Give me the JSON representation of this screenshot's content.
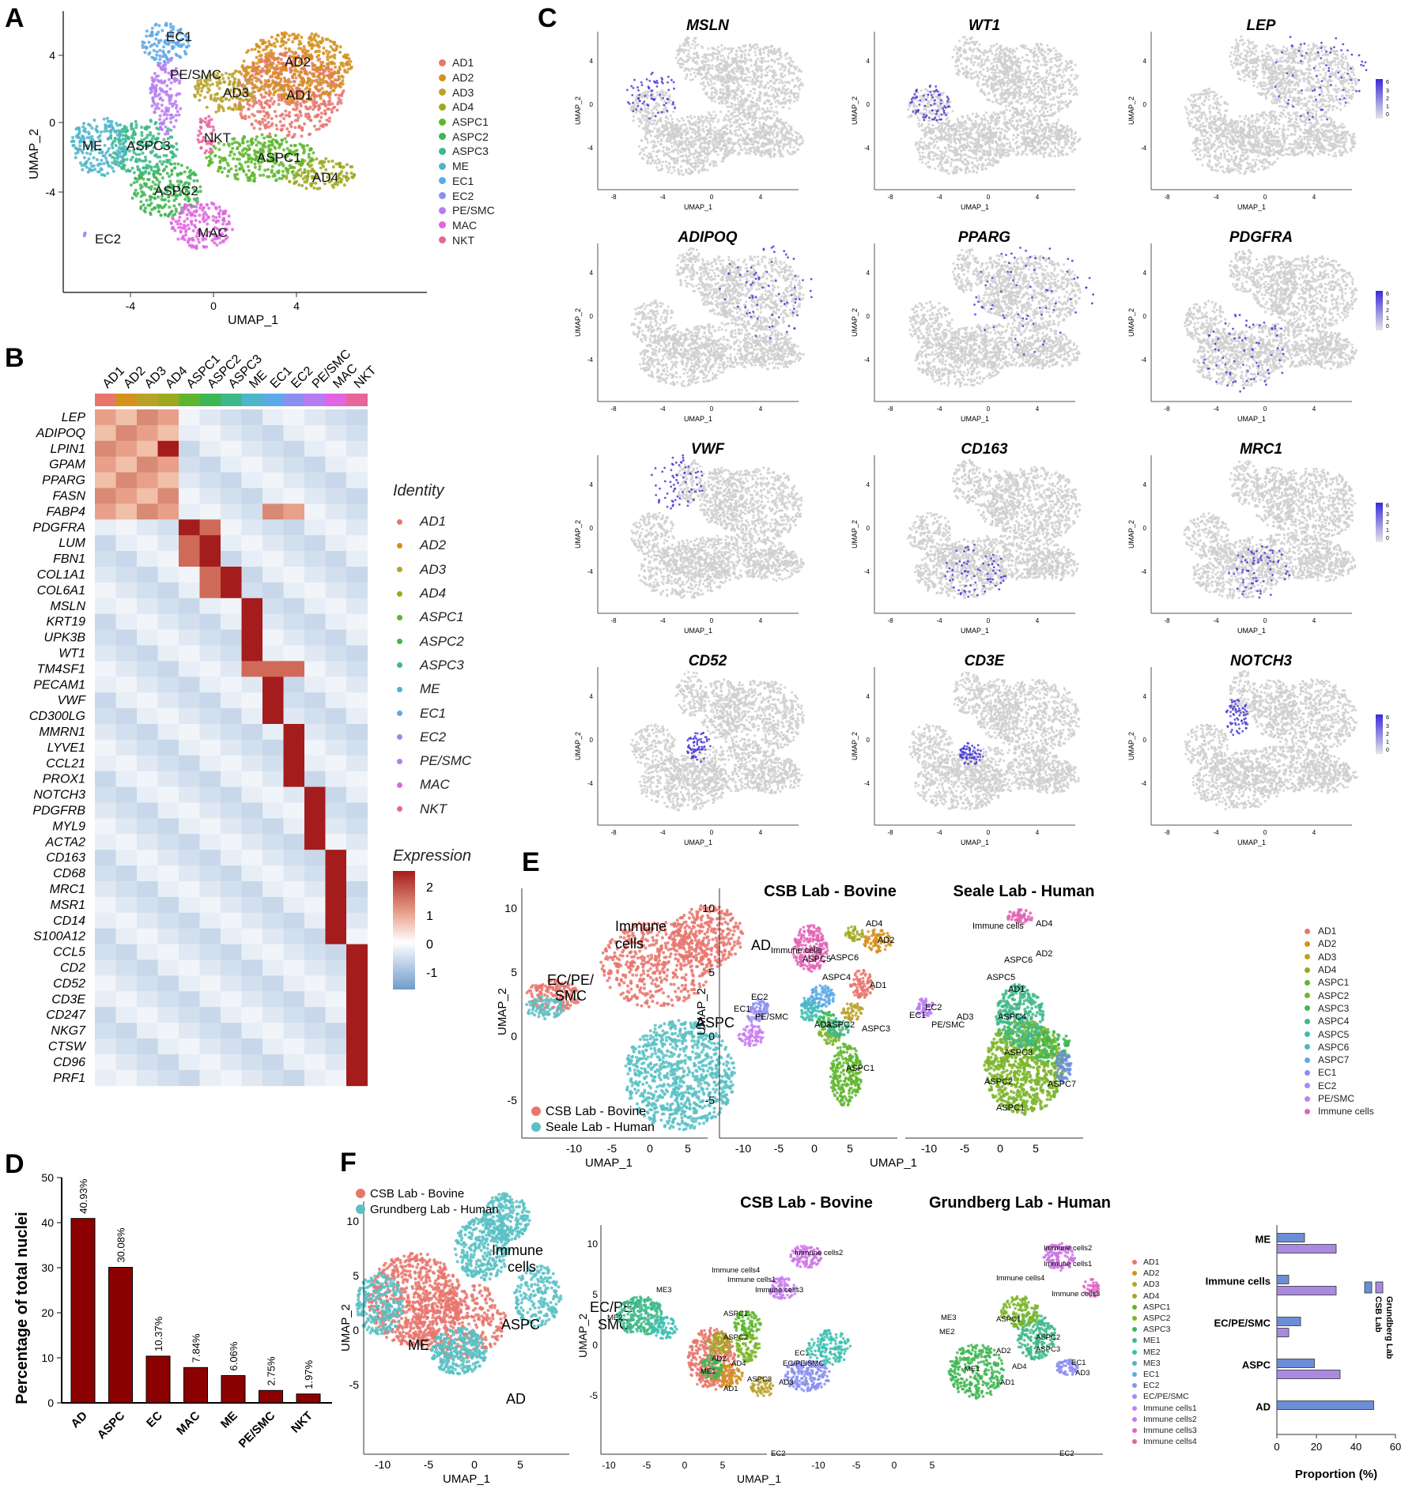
{
  "panelA": {
    "label": "A",
    "xlabel": "UMAP_1",
    "ylabel": "UMAP_2",
    "xticks": [
      "-4",
      "0",
      "4"
    ],
    "yticks": [
      "4",
      "0",
      "-4"
    ],
    "legend": [
      "AD1",
      "AD2",
      "AD3",
      "AD4",
      "ASPC1",
      "ASPC2",
      "ASPC3",
      "ME",
      "EC1",
      "EC2",
      "PE/SMC",
      "MAC",
      "NKT"
    ],
    "colors": [
      "#e8766d",
      "#d4911d",
      "#b9a22a",
      "#9ea81f",
      "#5eb62e",
      "#3fb654",
      "#3db88a",
      "#4fb5c9",
      "#5ca9e8",
      "#8b8ff1",
      "#b77cf0",
      "#e065e0",
      "#e8659c"
    ],
    "cluster_labels": [
      "EC1",
      "AD2",
      "PE/SMC",
      "AD3",
      "AD1",
      "NKT",
      "ME",
      "ASPC3",
      "ASPC1",
      "AD4",
      "ASPC2",
      "MAC",
      "EC2"
    ]
  },
  "panelB": {
    "label": "B",
    "columns": [
      "AD1",
      "AD2",
      "AD3",
      "AD4",
      "ASPC1",
      "ASPC2",
      "ASPC3",
      "ME",
      "EC1",
      "EC2",
      "PE/SMC",
      "MAC",
      "NKT"
    ],
    "genes": [
      "LEP",
      "ADIPOQ",
      "LPIN1",
      "GPAM",
      "PPARG",
      "FASN",
      "FABP4",
      "PDGFRA",
      "LUM",
      "FBN1",
      "COL1A1",
      "COL6A1",
      "MSLN",
      "KRT19",
      "UPK3B",
      "WT1",
      "TM4SF1",
      "PECAM1",
      "VWF",
      "CD300LG",
      "MMRN1",
      "LYVE1",
      "CCL21",
      "PROX1",
      "NOTCH3",
      "PDGFRB",
      "MYL9",
      "ACTA2",
      "CD163",
      "CD68",
      "MRC1",
      "MSR1",
      "CD14",
      "S100A12",
      "CCL5",
      "CD2",
      "CD52",
      "CD3E",
      "CD247",
      "NKG7",
      "CTSW",
      "CD96",
      "PRF1"
    ],
    "identity_title": "Identity",
    "expression_title": "Expression",
    "expression_ticks": [
      "2",
      "1",
      "0",
      "-1"
    ]
  },
  "panelC": {
    "label": "C",
    "genes": [
      "MSLN",
      "WT1",
      "LEP",
      "ADIPOQ",
      "PPARG",
      "PDGFRA",
      "VWF",
      "CD163",
      "MRC1",
      "CD52",
      "CD3E",
      "NOTCH3"
    ],
    "xlabel": "UMAP_1",
    "ylabel": "UMAP_2",
    "xticks": [
      "-8",
      "-4",
      "0",
      "4"
    ],
    "yticks": [
      "4",
      "0",
      "-4"
    ],
    "scale_top": "6",
    "scale_ticks": [
      "4",
      "3",
      "2",
      "1",
      "0"
    ]
  },
  "panelD": {
    "label": "D",
    "chart_data": {
      "type": "bar",
      "categories": [
        "AD",
        "ASPC",
        "EC",
        "MAC",
        "ME",
        "PE/SMC",
        "NKT"
      ],
      "values": [
        40.93,
        30.08,
        10.37,
        7.84,
        6.06,
        2.75,
        1.97
      ],
      "value_labels": [
        "40.93%",
        "30.08%",
        "10.37%",
        "7.84%",
        "6.06%",
        "2.75%",
        "1.97%"
      ],
      "ylabel": "Percentage of total nuclei",
      "ylim": [
        0,
        50
      ],
      "yticks": [
        "0",
        "10",
        "20",
        "30",
        "40",
        "50"
      ],
      "bar_color": "#8b0000"
    }
  },
  "panelE": {
    "label": "E",
    "titles": [
      "CSB Lab - Bovine",
      "Seale Lab - Human"
    ],
    "legend_main": [
      "CSB Lab - Bovine",
      "Seale Lab - Human"
    ],
    "cluster_labels_main": [
      "Immune cells",
      "AD",
      "EC/PE/ SMC",
      "ASPC"
    ],
    "legend_right": [
      "AD1",
      "AD2",
      "AD3",
      "AD4",
      "ASPC1",
      "ASPC2",
      "ASPC3",
      "ASPC4",
      "ASPC5",
      "ASPC6",
      "ASPC7",
      "EC1",
      "EC2",
      "PE/SMC",
      "Immune cells"
    ],
    "xlabel": "UMAP_1",
    "ylabel": "UMAP_2",
    "xticks": [
      "-10",
      "-5",
      "0",
      "5"
    ],
    "yticks": [
      "10",
      "5",
      "0",
      "-5"
    ],
    "bovine_labels": [
      "AD4",
      "AD2",
      "Immune cells",
      "ASPC6",
      "ASPC5",
      "ASPC4",
      "AD1",
      "EC2",
      "EC1",
      "PE/SMC",
      "AD3",
      "ASPC2",
      "ASPC3",
      "ASPC1"
    ],
    "human_labels": [
      "Immune cells",
      "AD4",
      "AD2",
      "ASPC6",
      "ASPC5",
      "AD1",
      "ASPC4",
      "AD3",
      "EC1",
      "EC2",
      "PE/SMC",
      "ASPC3",
      "ASPC2",
      "ASPC7",
      "ASPC1"
    ]
  },
  "panelF": {
    "label": "F",
    "titles": [
      "CSB Lab - Bovine",
      "Grundberg Lab - Human"
    ],
    "legend_main": [
      "CSB Lab - Bovine",
      "Grundberg Lab - Human"
    ],
    "cluster_labels_main": [
      "Immune cells",
      "ASPC",
      "EC/PE/ SMC",
      "ME",
      "AD"
    ],
    "legend_right": [
      "AD1",
      "AD2",
      "AD3",
      "AD4",
      "ASPC1",
      "ASPC2",
      "ASPC3",
      "ME1",
      "ME2",
      "ME3",
      "EC1",
      "EC2",
      "EC/PE/SMC",
      "Immune cells1",
      "Immune cells2",
      "Immune cells3",
      "Immune cells4"
    ],
    "xlabel": "UMAP_1",
    "ylabel": "UMAP_2",
    "xticks": [
      "-10",
      "-5",
      "0",
      "5"
    ],
    "yticks": [
      "10",
      "5",
      "0",
      "-5"
    ],
    "bovine_labels": [
      "Immune cells2",
      "Immune cells4",
      "Immune cells1",
      "Immune cells3",
      "ME3",
      "ASPC1",
      "ME2",
      "ASPC2",
      "AD2",
      "AD4",
      "ME1",
      "ASPC3",
      "AD3",
      "EC1",
      "EC/PE/SMC",
      "AD1",
      "EC2"
    ],
    "human_labels": [
      "Immune cells2",
      "Immune cells1",
      "Immune cells4",
      "Immune cells3",
      "ME3",
      "ASPC1",
      "ME2",
      "ASPC2",
      "AD2",
      "ASPC3",
      "ME1",
      "AD4",
      "AD1",
      "EC1",
      "AD3",
      "EC2"
    ],
    "proportion_chart": {
      "type": "bar",
      "categories": [
        "ME",
        "Immune cells",
        "EC/PE/SMC",
        "ASPC",
        "AD"
      ],
      "series": [
        {
          "name": "CSB Lab",
          "values": [
            14,
            6,
            12,
            19,
            49
          ]
        },
        {
          "name": "Grundberg Lab",
          "values": [
            30,
            30,
            6,
            32,
            0
          ]
        }
      ],
      "xlabel": "Proportion (%)",
      "xlim": [
        0,
        60
      ],
      "xticks": [
        "0",
        "20",
        "40",
        "60"
      ],
      "colors": [
        "#6c8ed8",
        "#a98ae0"
      ]
    }
  }
}
